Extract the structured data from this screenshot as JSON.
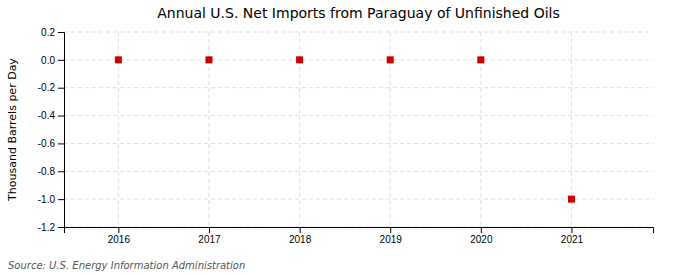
{
  "chart_data": {
    "type": "scatter",
    "title": "Annual U.S. Net Imports from Paraguay of Unfinished Oils",
    "ylabel": "Thousand Barrels per Day",
    "source": "Source: U.S. Energy Information Administration",
    "x": [
      2016,
      2017,
      2018,
      2019,
      2020,
      2021
    ],
    "values": [
      0,
      0,
      0,
      0,
      0,
      -1.0
    ],
    "color": "#cc0000",
    "marker": "square",
    "xlim": [
      2015.4,
      2021.9
    ],
    "xticks": [
      2016,
      2017,
      2018,
      2019,
      2020,
      2021
    ],
    "ylim": [
      -1.2,
      0.2
    ],
    "yticks": [
      0.2,
      {
        "value": 0.0,
        "label": "0.0"
      },
      -0.2,
      -0.4,
      -0.6,
      -0.8,
      {
        "value": -1.0,
        "label": "-1.0"
      },
      -1.2
    ],
    "grid": true
  }
}
